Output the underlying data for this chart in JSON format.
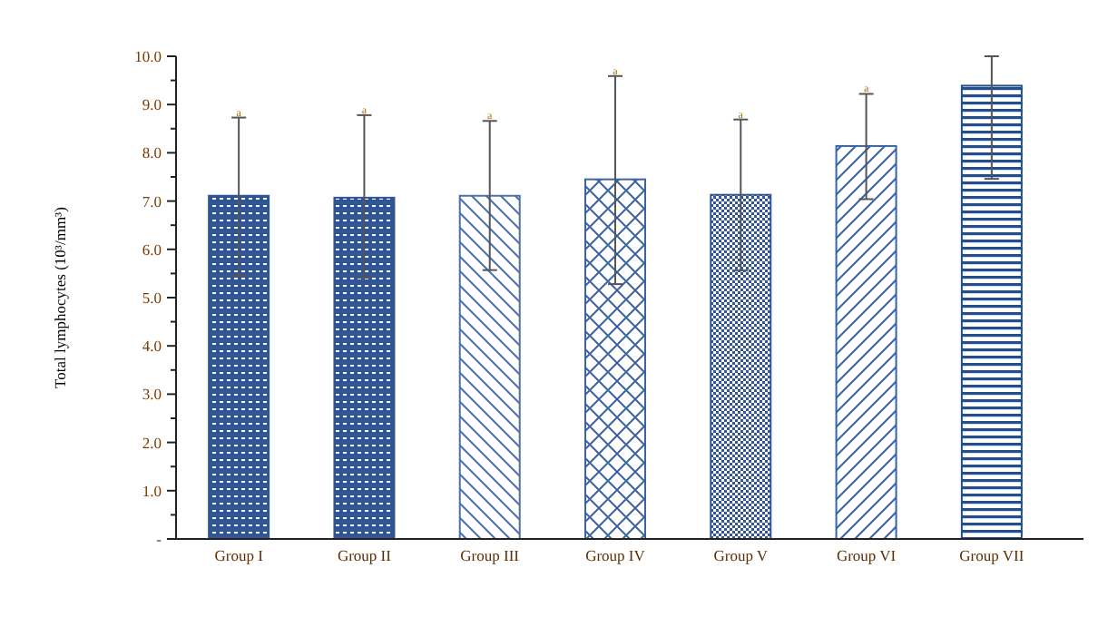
{
  "chart_data": {
    "type": "bar",
    "ylabel": "Total lymphocytes (10³/mm³)",
    "categories": [
      "Group I",
      "Group II",
      "Group III",
      "Group IV",
      "Group V",
      "Group VI",
      "Group VII"
    ],
    "values": [
      7.11,
      7.07,
      7.11,
      7.45,
      7.13,
      8.14,
      9.39
    ],
    "errors": [
      [
        5.45,
        8.73
      ],
      [
        5.41,
        8.78
      ],
      [
        5.57,
        8.66
      ],
      [
        5.28,
        9.59
      ],
      [
        5.56,
        8.69
      ],
      [
        7.04,
        9.22
      ],
      [
        7.46,
        10.0
      ]
    ],
    "colors": [
      "#2f5597",
      "#2f5597",
      "#4a72b0",
      "#3d63a3",
      "#2f5597",
      "#3a62a8",
      "#1f4e8c"
    ],
    "ylim": [
      0,
      10
    ],
    "yticks": [
      {
        "value": 0,
        "label": "-"
      },
      {
        "value": 0.5,
        "label": null
      },
      {
        "value": 1,
        "label": "1.0"
      },
      {
        "value": 1.5,
        "label": null
      },
      {
        "value": 2,
        "label": "2.0"
      },
      {
        "value": 2.5,
        "label": null
      },
      {
        "value": 3,
        "label": "3.0"
      },
      {
        "value": 3.5,
        "label": null
      },
      {
        "value": 4,
        "label": "4.0"
      },
      {
        "value": 4.5,
        "label": null
      },
      {
        "value": 5,
        "label": "5.0"
      },
      {
        "value": 5.5,
        "label": null
      },
      {
        "value": 6,
        "label": "6.0"
      },
      {
        "value": 6.5,
        "label": null
      },
      {
        "value": 7,
        "label": "7.0"
      },
      {
        "value": 7.5,
        "label": null
      },
      {
        "value": 8,
        "label": "8.0"
      },
      {
        "value": 8.5,
        "label": null
      },
      {
        "value": 9,
        "label": "9.0"
      },
      {
        "value": 9.5,
        "label": null
      },
      {
        "value": 10,
        "label": "10.0"
      }
    ],
    "annotations": [
      {
        "text": "a",
        "x": "Group I",
        "y": 8.73
      },
      {
        "text": "a",
        "x": "Group II",
        "y": 8.78
      },
      {
        "text": "a",
        "x": "Group III",
        "y": 8.66
      },
      {
        "text": "a",
        "x": "Group IV",
        "y": 9.59
      },
      {
        "text": "a",
        "x": "Group V",
        "y": 8.69
      },
      {
        "text": "a",
        "x": "Group VI",
        "y": 9.22
      }
    ],
    "grid": false
  }
}
